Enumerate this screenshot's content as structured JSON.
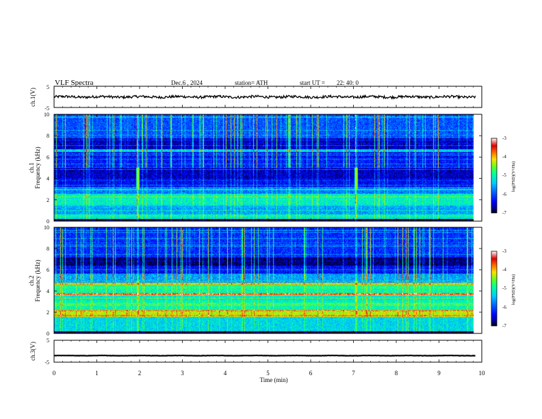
{
  "header": {
    "title": "VLF  Spectra",
    "date": "Dec.6  , 2024",
    "station": "station= ATH",
    "start_prefix": "start  UT  =",
    "start_time": "22: 40: 0"
  },
  "colors": {
    "colormap": [
      "#000080",
      "#0000ff",
      "#0066ff",
      "#00bfff",
      "#00ffc0",
      "#40ff40",
      "#c0ff00",
      "#ffd000",
      "#ff6000",
      "#dd0000",
      "#ffffff"
    ],
    "waveform": "#000000"
  },
  "chart_data": [
    {
      "type": "line",
      "name": "ch1-waveform",
      "ylabel": "ch.1(V)",
      "ylim": [
        -5,
        5
      ],
      "yticks": [
        "5",
        "-5"
      ],
      "approx_level": 0,
      "approx_amplitude": 0.6,
      "xlim": [
        0,
        10
      ]
    },
    {
      "type": "heatmap",
      "name": "ch1-spectrogram",
      "ylabel_top": "ch.1",
      "ylabel": "Frequency  (kHz)",
      "ylim": [
        0,
        10
      ],
      "yticks": [
        "0",
        "2",
        "4",
        "6",
        "8",
        "10"
      ],
      "xlim": [
        0,
        10
      ],
      "data_xmax": 9.8,
      "colorbar": {
        "label": "log(PSD)(V²/Hz)",
        "range": [
          -7,
          -3
        ],
        "ticks": [
          "-3",
          "-4",
          "-5",
          "-6",
          "-7"
        ]
      },
      "bands": [
        {
          "f": [
            0.0,
            0.15
          ],
          "level": -7.0
        },
        {
          "f": [
            0.15,
            0.6
          ],
          "level": -5.2
        },
        {
          "f": [
            0.6,
            1.5
          ],
          "level": -5.6
        },
        {
          "f": [
            1.5,
            2.5
          ],
          "level": -5.1
        },
        {
          "f": [
            2.5,
            3.2
          ],
          "level": -5.8
        },
        {
          "f": [
            3.2,
            4.0
          ],
          "level": -6.4
        },
        {
          "f": [
            4.0,
            5.0
          ],
          "level": -6.6
        },
        {
          "f": [
            5.0,
            6.0
          ],
          "level": -6.3
        },
        {
          "f": [
            6.0,
            6.5
          ],
          "level": -6.4
        },
        {
          "f": [
            6.5,
            6.75
          ],
          "level": -5.4
        },
        {
          "f": [
            6.75,
            7.8
          ],
          "level": -6.6
        },
        {
          "f": [
            7.8,
            10.0
          ],
          "level": -6.0
        }
      ],
      "bursts_at_min": [
        1.95,
        7.05
      ]
    },
    {
      "type": "heatmap",
      "name": "ch2-spectrogram",
      "ylabel_top": "ch.2",
      "ylabel": "Frequency  (kHz)",
      "ylim": [
        0,
        10
      ],
      "yticks": [
        "0",
        "2",
        "4",
        "6",
        "8",
        "10"
      ],
      "xlim": [
        0,
        10
      ],
      "data_xmax": 9.8,
      "colorbar": {
        "label": "log(PSD)(V²/Hz)",
        "range": [
          -7,
          -3
        ],
        "ticks": [
          "-3",
          "-4",
          "-5",
          "-6",
          "-7"
        ]
      },
      "bands": [
        {
          "f": [
            0.0,
            0.15
          ],
          "level": -7.0
        },
        {
          "f": [
            0.15,
            1.5
          ],
          "level": -5.3
        },
        {
          "f": [
            1.5,
            2.2
          ],
          "level": -4.3
        },
        {
          "f": [
            2.2,
            3.0
          ],
          "level": -5.0
        },
        {
          "f": [
            3.0,
            3.6
          ],
          "level": -5.2
        },
        {
          "f": [
            3.6,
            3.8
          ],
          "level": -3.8
        },
        {
          "f": [
            3.8,
            4.3
          ],
          "level": -5.0
        },
        {
          "f": [
            4.3,
            4.6
          ],
          "level": -4.9
        },
        {
          "f": [
            4.6,
            4.8
          ],
          "level": -4.1
        },
        {
          "f": [
            4.8,
            5.6
          ],
          "level": -5.6
        },
        {
          "f": [
            5.6,
            6.4
          ],
          "level": -6.4
        },
        {
          "f": [
            6.4,
            7.2
          ],
          "level": -6.8
        },
        {
          "f": [
            7.2,
            10.0
          ],
          "level": -6.2
        }
      ],
      "bursts_at_min": [
        1.95,
        7.05
      ]
    },
    {
      "type": "line",
      "name": "ch3-waveform",
      "ylabel": "ch.3(V)",
      "ylim": [
        -5,
        5
      ],
      "yticks": [
        "5",
        "-5"
      ],
      "approx_level": -2,
      "approx_amplitude": 0.15,
      "xlim": [
        0,
        10
      ]
    }
  ],
  "xaxis": {
    "label": "Time  (min)",
    "ticks": [
      "0",
      "1",
      "2",
      "3",
      "4",
      "5",
      "6",
      "7",
      "8",
      "9",
      "10"
    ]
  }
}
